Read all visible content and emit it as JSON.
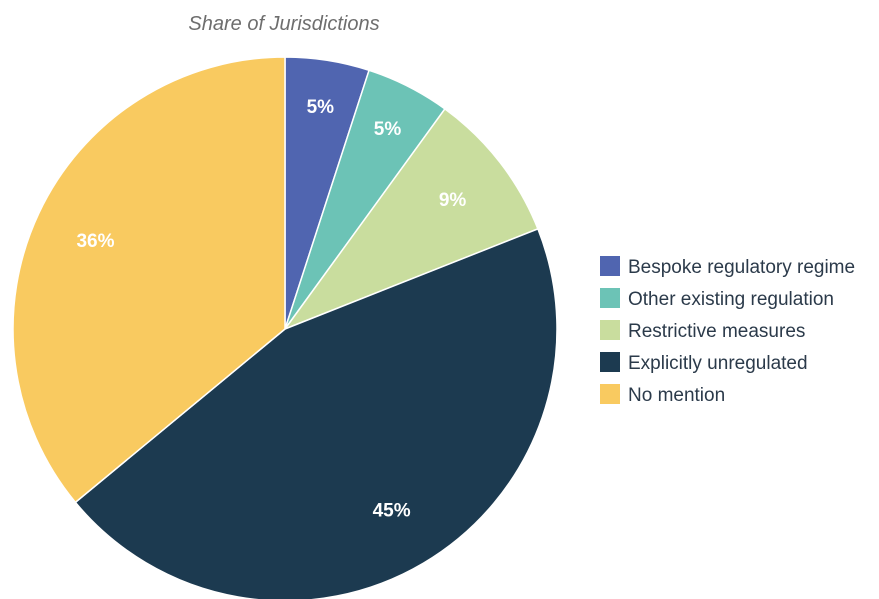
{
  "chart_data": {
    "type": "pie",
    "title": "Share of Jurisdictions",
    "categories": [
      "Bespoke regulatory regime",
      "Other existing regulation",
      "Restrictive measures",
      "Explicitly unregulated",
      "No mention"
    ],
    "values": [
      5,
      5,
      9,
      45,
      36
    ],
    "labels": [
      "5%",
      "5%",
      "9%",
      "45%",
      "36%"
    ],
    "colors": [
      "#5065b0",
      "#6cc3b6",
      "#c9dd9e",
      "#1c3a50",
      "#f9ca60"
    ],
    "label_color": "#ffffff",
    "start_angle": "12 o'clock",
    "direction": "clockwise",
    "legend_position": "right"
  }
}
